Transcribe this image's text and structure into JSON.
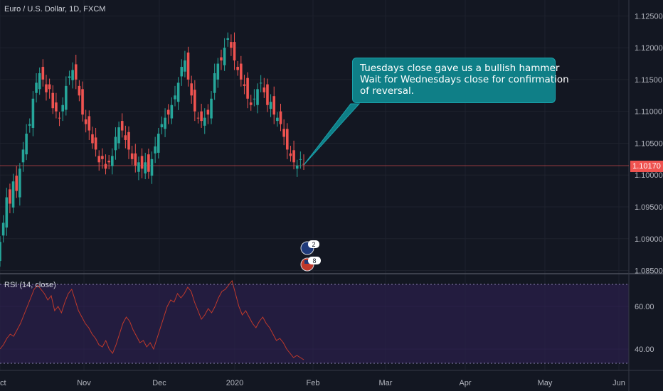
{
  "chart_title": "Euro / U.S. Dollar, 1D, FXCM",
  "indicator_label": "RSI (14, close)",
  "current_price": "1.10170",
  "callout": {
    "line1": "Tuesdays close gave us a bullish hammer",
    "line2": "Wait for Wednesdays close for confirmation",
    "line3": "of reversal."
  },
  "event_markers": [
    {
      "label": "2",
      "badge": "eu-flag-icon"
    },
    {
      "label": "8",
      "badge": "us-flag-icon"
    }
  ],
  "colors": {
    "background": "#131722",
    "up_candle": "#26a69a",
    "down_candle": "#ef5350",
    "rsi_line": "#c0392b",
    "rsi_band": "#2a1f4a",
    "callout_fill": "#0f7f87",
    "price_line": "#ef5350"
  },
  "chart_data": [
    {
      "type": "candlestick",
      "title": "Euro / U.S. Dollar, 1D, FXCM",
      "x_tick_labels": [
        "ct",
        "Nov",
        "Dec",
        "2020",
        "Feb",
        "Mar",
        "Apr",
        "May",
        "Jun"
      ],
      "y_tick_labels": [
        "1.12500",
        "1.12000",
        "1.11500",
        "1.11000",
        "1.10500",
        "1.10000",
        "1.09500",
        "1.09000",
        "1.08500"
      ],
      "ylim": [
        1.0845,
        1.1275
      ],
      "grid": true,
      "closes": [
        1.0895,
        1.0925,
        1.0965,
        1.0955,
        1.099,
        1.0975,
        1.101,
        1.104,
        1.1065,
        1.108,
        1.112,
        1.1145,
        1.116,
        1.115,
        1.113,
        1.1135,
        1.1105,
        1.11,
        1.109,
        1.111,
        1.114,
        1.1155,
        1.1165,
        1.115,
        1.1125,
        1.1095,
        1.108,
        1.107,
        1.105,
        1.104,
        1.102,
        1.1025,
        1.101,
        1.102,
        1.103,
        1.106,
        1.1075,
        1.107,
        1.1055,
        1.104,
        1.1025,
        1.1015,
        1.102,
        1.101,
        1.102,
        1.1005,
        1.1025,
        1.1045,
        1.1065,
        1.108,
        1.109,
        1.1095,
        1.111,
        1.1125,
        1.1145,
        1.117,
        1.118,
        1.115,
        1.1125,
        1.11,
        1.109,
        1.1085,
        1.109,
        1.1095,
        1.112,
        1.116,
        1.1175,
        1.118,
        1.12,
        1.1215,
        1.12,
        1.118,
        1.1165,
        1.115,
        1.114,
        1.112,
        1.111,
        1.112,
        1.1135,
        1.1145,
        1.113,
        1.111,
        1.1115,
        1.1095,
        1.109,
        1.108,
        1.106,
        1.104,
        1.103,
        1.102,
        1.1015,
        1.1025,
        1.1017
      ],
      "opens_offset_pattern": [
        -0.002,
        0.002,
        -0.0015,
        0.0025,
        -0.0012,
        0.0018
      ],
      "rsi": {
        "label": "RSI (14, close)",
        "y_tick_labels": [
          "60.00",
          "40.00"
        ],
        "ylim": [
          30,
          75
        ],
        "band": [
          30,
          70
        ],
        "values": [
          40,
          42,
          45,
          47,
          46,
          49,
          52,
          56,
          60,
          64,
          68,
          70,
          68,
          66,
          63,
          65,
          58,
          60,
          57,
          62,
          66,
          68,
          63,
          58,
          55,
          52,
          50,
          47,
          45,
          42,
          41,
          44,
          40,
          38,
          42,
          47,
          52,
          55,
          53,
          49,
          46,
          43,
          44,
          41,
          43,
          40,
          45,
          50,
          55,
          60,
          63,
          62,
          66,
          64,
          66,
          69,
          67,
          62,
          58,
          54,
          56,
          59,
          57,
          60,
          64,
          67,
          68,
          70,
          72,
          66,
          60,
          56,
          58,
          55,
          52,
          50,
          53,
          55,
          52,
          50,
          47,
          44,
          45,
          43,
          40,
          38,
          36,
          37,
          36,
          35
        ]
      }
    }
  ]
}
